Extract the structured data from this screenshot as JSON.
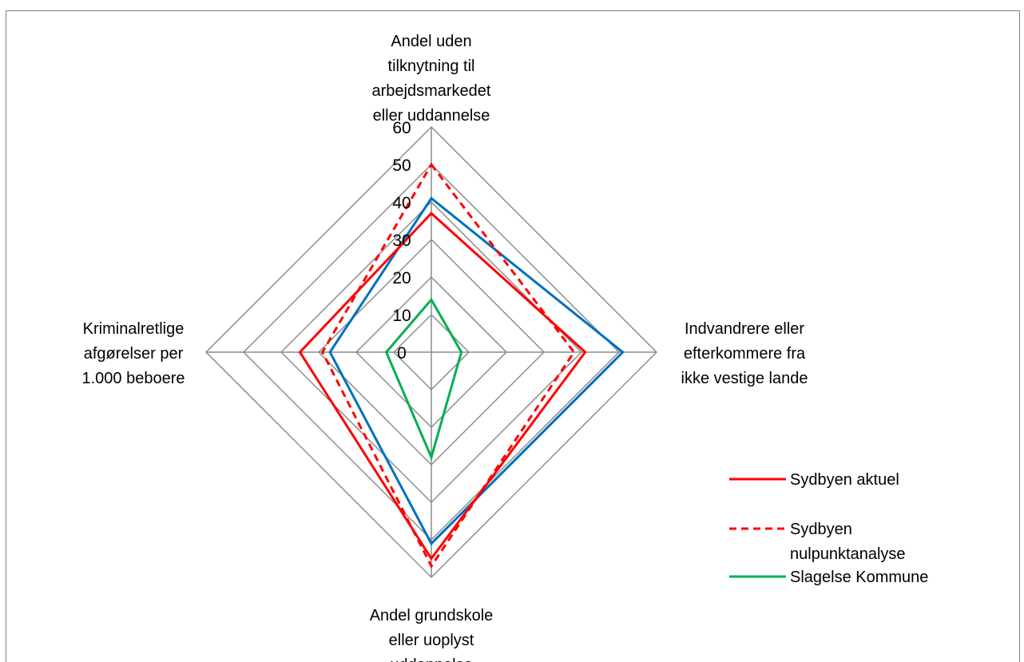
{
  "chart_data": {
    "type": "radar",
    "title": "",
    "axes": [
      "Andel uden tilknytning til arbejdsmarkedet eller uddannelse",
      "Indvandrere eller efterkommere fra ikke vestige lande",
      "Andel grundskole eller uoplyst uddannelse",
      "Kriminalretlige afgørelser per 1.000 beboere"
    ],
    "axis_label_lines": [
      [
        "Andel uden",
        "tilknytning til",
        "arbejdsmarkedet",
        "eller uddannelse"
      ],
      [
        "Indvandrere eller",
        "efterkommere fra",
        "ikke vestige lande"
      ],
      [
        "Andel grundskole",
        "eller uoplyst",
        "uddannelse"
      ],
      [
        "Kriminalretlige",
        "afgørelser per",
        "1.000 beboere"
      ]
    ],
    "rlim": [
      0,
      60
    ],
    "ticks": [
      0,
      10,
      20,
      30,
      40,
      50,
      60
    ],
    "tick_labels": [
      "0",
      "10",
      "20",
      "30",
      "40",
      "50",
      "60"
    ],
    "grid": true,
    "legend_position": "right",
    "series": [
      {
        "name": "Sydbyen aktuel",
        "values": [
          37,
          41,
          55,
          35
        ],
        "color": "#ff0000",
        "dash": "solid"
      },
      {
        "name": "Sydbyen nulpunktanalyse",
        "legend_lines": [
          "Sydbyen",
          "nulpunktanalyse"
        ],
        "values": [
          50,
          38,
          57,
          29
        ],
        "color": "#ff0000",
        "dash": "dashed"
      },
      {
        "name": "Slagelse Kommune",
        "values": [
          14,
          8,
          28,
          12
        ],
        "color": "#00b050",
        "dash": "solid"
      },
      {
        "name": "",
        "values": [
          41,
          51,
          51,
          27
        ],
        "color": "#0070c0",
        "dash": "solid"
      }
    ]
  }
}
